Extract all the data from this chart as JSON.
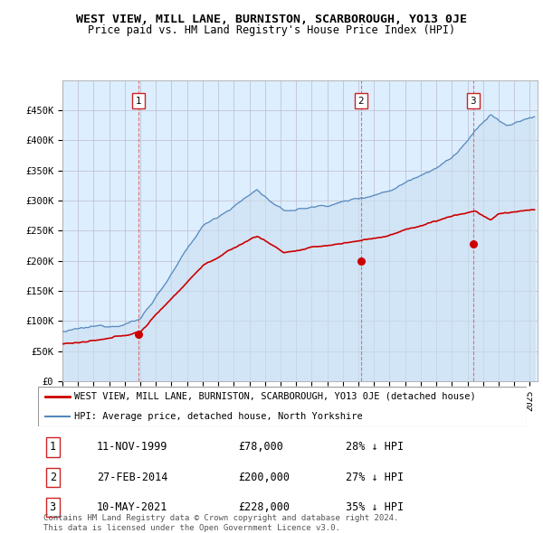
{
  "title": "WEST VIEW, MILL LANE, BURNISTON, SCARBOROUGH, YO13 0JE",
  "subtitle": "Price paid vs. HM Land Registry's House Price Index (HPI)",
  "background_color": "#ffffff",
  "plot_bg_color": "#ddeeff",
  "grid_color": "#bbbbcc",
  "red_line_color": "#cc0000",
  "blue_line_color": "#5588bb",
  "fill_color": "#c8ddf0",
  "sale_marker_color": "#cc0000",
  "vline_color": "#dd6666",
  "ylim": [
    0,
    500000
  ],
  "yticks": [
    0,
    50000,
    100000,
    150000,
    200000,
    250000,
    300000,
    350000,
    400000,
    450000
  ],
  "ytick_labels": [
    "£0",
    "£50K",
    "£100K",
    "£150K",
    "£200K",
    "£250K",
    "£300K",
    "£350K",
    "£400K",
    "£450K"
  ],
  "xstart": 1995.0,
  "xend": 2025.5,
  "sales": [
    {
      "date_num": 1999.87,
      "price": 78000,
      "label": "1",
      "date_str": "11-NOV-1999",
      "price_str": "£78,000",
      "pct": "28% ↓ HPI"
    },
    {
      "date_num": 2014.16,
      "price": 200000,
      "label": "2",
      "date_str": "27-FEB-2014",
      "price_str": "£200,000",
      "pct": "27% ↓ HPI"
    },
    {
      "date_num": 2021.37,
      "price": 228000,
      "label": "3",
      "date_str": "10-MAY-2021",
      "price_str": "£228,000",
      "pct": "35% ↓ HPI"
    }
  ],
  "legend_entries": [
    {
      "label": "WEST VIEW, MILL LANE, BURNISTON, SCARBOROUGH, YO13 0JE (detached house)",
      "color": "#cc0000",
      "lw": 2
    },
    {
      "label": "HPI: Average price, detached house, North Yorkshire",
      "color": "#5588bb",
      "lw": 1.5
    }
  ],
  "footer": "Contains HM Land Registry data © Crown copyright and database right 2024.\nThis data is licensed under the Open Government Licence v3.0.",
  "title_fontsize": 9.5,
  "subtitle_fontsize": 8.5,
  "tick_fontsize": 7.5,
  "legend_fontsize": 7.5,
  "footer_fontsize": 6.5
}
